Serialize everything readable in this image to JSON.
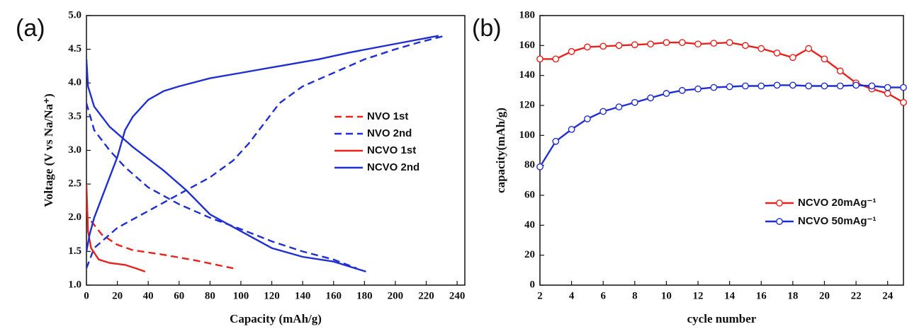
{
  "chart_data": [
    {
      "type": "line",
      "panel_label": "(a)",
      "x_label": "Capacity (mAh/g)",
      "y_label": "Voltage (V vs Na/Na⁺)",
      "xlim": [
        0,
        245
      ],
      "ylim": [
        1.0,
        5.0
      ],
      "xticks": [
        0,
        20,
        40,
        60,
        80,
        100,
        120,
        140,
        160,
        180,
        200,
        220,
        240
      ],
      "yticks": [
        {
          "value": 1.0,
          "label": "1.0"
        },
        1.5,
        {
          "value": 2.0,
          "label": "2.0"
        },
        2.5,
        {
          "value": 3.0,
          "label": "3.0"
        },
        3.5,
        {
          "value": 4.0,
          "label": "4.0"
        },
        4.5,
        {
          "value": 5.0,
          "label": "5.0"
        }
      ],
      "series": [
        {
          "name": "NVO 1st",
          "color": "#e8211d",
          "dash": true,
          "x": [
            3,
            10,
            20,
            30,
            50,
            70,
            95
          ],
          "values": [
            1.95,
            1.75,
            1.6,
            1.52,
            1.45,
            1.37,
            1.25
          ]
        },
        {
          "name": "NVO 2nd",
          "color": "#1f2fd0",
          "dash": true,
          "x": [
            0,
            5,
            20,
            40,
            60,
            80,
            95,
            105,
            115,
            125,
            140,
            160,
            180,
            200,
            215,
            232,
            null,
            0,
            5,
            15,
            25,
            40,
            60,
            80,
            100,
            120,
            140,
            160,
            175
          ],
          "values": [
            1.25,
            1.55,
            1.85,
            2.1,
            2.35,
            2.6,
            2.85,
            3.1,
            3.4,
            3.7,
            3.95,
            4.15,
            4.35,
            4.5,
            4.6,
            4.7,
            null,
            3.7,
            3.3,
            3.0,
            2.75,
            2.45,
            2.2,
            2.0,
            1.83,
            1.65,
            1.5,
            1.38,
            1.25
          ]
        },
        {
          "name": "NCVO 1st",
          "color": "#e8211d",
          "dash": false,
          "x": [
            0,
            1,
            3,
            8,
            15,
            25,
            32,
            38
          ],
          "values": [
            2.5,
            1.8,
            1.55,
            1.38,
            1.33,
            1.3,
            1.25,
            1.2
          ]
        },
        {
          "name": "NCVO 2nd",
          "color": "#1f2fd0",
          "dash": false,
          "x": [
            0,
            2,
            5,
            10,
            15,
            20,
            25,
            30,
            40,
            50,
            60,
            80,
            100,
            120,
            150,
            170,
            200,
            228,
            null,
            0,
            1,
            5,
            15,
            30,
            50,
            65,
            80,
            100,
            120,
            140,
            160,
            181
          ],
          "values": [
            1.5,
            1.75,
            2.0,
            2.3,
            2.6,
            2.9,
            3.3,
            3.5,
            3.75,
            3.88,
            3.95,
            4.07,
            4.15,
            4.23,
            4.35,
            4.45,
            4.58,
            4.7,
            null,
            4.35,
            3.95,
            3.65,
            3.35,
            3.05,
            2.7,
            2.4,
            2.05,
            1.8,
            1.55,
            1.42,
            1.35,
            1.2
          ]
        }
      ]
    },
    {
      "type": "line",
      "panel_label": "(b)",
      "x_label": "cycle number",
      "y_label": "capacity(mAh/g)",
      "xlim": [
        2,
        25
      ],
      "ylim": [
        0,
        180
      ],
      "xticks": [
        2,
        4,
        6,
        8,
        10,
        12,
        14,
        16,
        18,
        20,
        22,
        24
      ],
      "yticks": [
        0,
        20,
        40,
        60,
        80,
        100,
        120,
        140,
        160,
        180
      ],
      "marker": "circle",
      "x": [
        2,
        3,
        4,
        5,
        6,
        7,
        8,
        9,
        10,
        11,
        12,
        13,
        14,
        15,
        16,
        17,
        18,
        19,
        20,
        21,
        22,
        23,
        24,
        25
      ],
      "series": [
        {
          "name": "NCVO 20mAg⁻¹",
          "color": "#e8211d",
          "dash": false,
          "values": [
            151,
            151,
            156,
            159,
            159.5,
            160,
            160.5,
            161,
            162,
            162,
            161,
            161.5,
            162,
            160,
            158,
            155,
            152,
            158,
            151,
            143,
            135,
            131,
            128,
            122
          ]
        },
        {
          "name": "NCVO 50mAg⁻¹",
          "color": "#1f2fd0",
          "dash": false,
          "values": [
            79,
            96,
            104,
            111,
            116,
            119,
            122,
            125,
            128,
            130,
            131,
            132,
            132.5,
            133,
            133,
            133.5,
            133.5,
            133,
            133,
            133,
            133.5,
            133,
            132,
            132
          ]
        }
      ]
    }
  ]
}
